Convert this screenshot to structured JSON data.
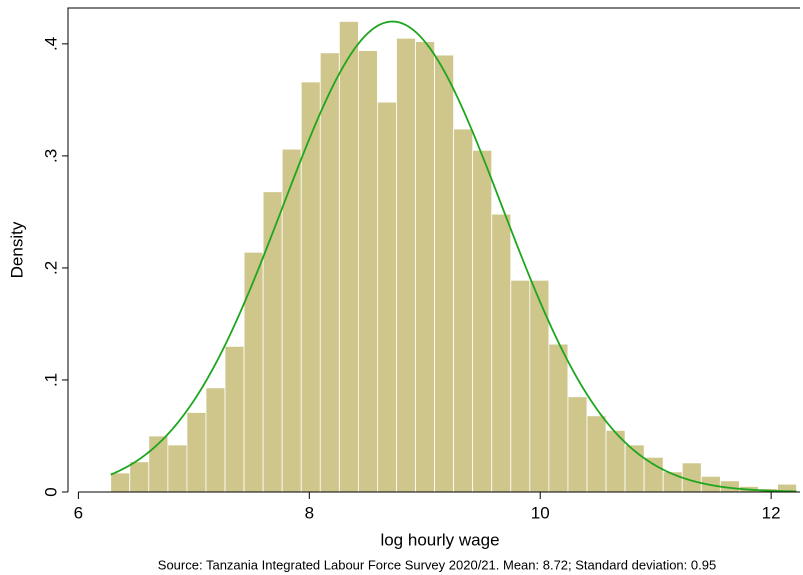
{
  "chart_data": {
    "type": "histogram",
    "xlabel": "log hourly wage",
    "ylabel": "Density",
    "caption": "Source: Tanzania Integrated Labour Force Survey 2020/21. Mean: 8.72; Standard deviation: 0.95",
    "bins": [
      6.28,
      6.445,
      6.61,
      6.775,
      6.94,
      7.105,
      7.27,
      7.435,
      7.6,
      7.765,
      7.93,
      8.095,
      8.26,
      8.425,
      8.59,
      8.755,
      8.92,
      9.085,
      9.25,
      9.415,
      9.58,
      9.745,
      9.91,
      10.075,
      10.24,
      10.405,
      10.57,
      10.735,
      10.9,
      11.065,
      11.23,
      11.395,
      11.56,
      11.725,
      11.89,
      12.055,
      12.22
    ],
    "values": [
      0.017,
      0.027,
      0.05,
      0.042,
      0.071,
      0.093,
      0.13,
      0.214,
      0.268,
      0.306,
      0.366,
      0.392,
      0.42,
      0.394,
      0.348,
      0.405,
      0.402,
      0.39,
      0.324,
      0.305,
      0.248,
      0.189,
      0.189,
      0.132,
      0.085,
      0.068,
      0.055,
      0.042,
      0.031,
      0.018,
      0.026,
      0.014,
      0.01,
      0.005,
      0.003,
      0.007
    ],
    "color": "#cfc68c",
    "density_curve": {
      "mean": 8.72,
      "sd": 0.95,
      "color": "#1ea61e"
    },
    "xlim": [
      5.91,
      12.25
    ],
    "ylim": [
      0,
      0.432
    ],
    "xticks": [
      6,
      8,
      10,
      12
    ],
    "yticks": [
      0,
      {
        "value": 0.1,
        "label": ".1"
      },
      {
        "value": 0.2,
        "label": ".2"
      },
      {
        "value": 0.3,
        "label": ".3"
      },
      {
        "value": 0.4,
        "label": ".4"
      }
    ]
  }
}
